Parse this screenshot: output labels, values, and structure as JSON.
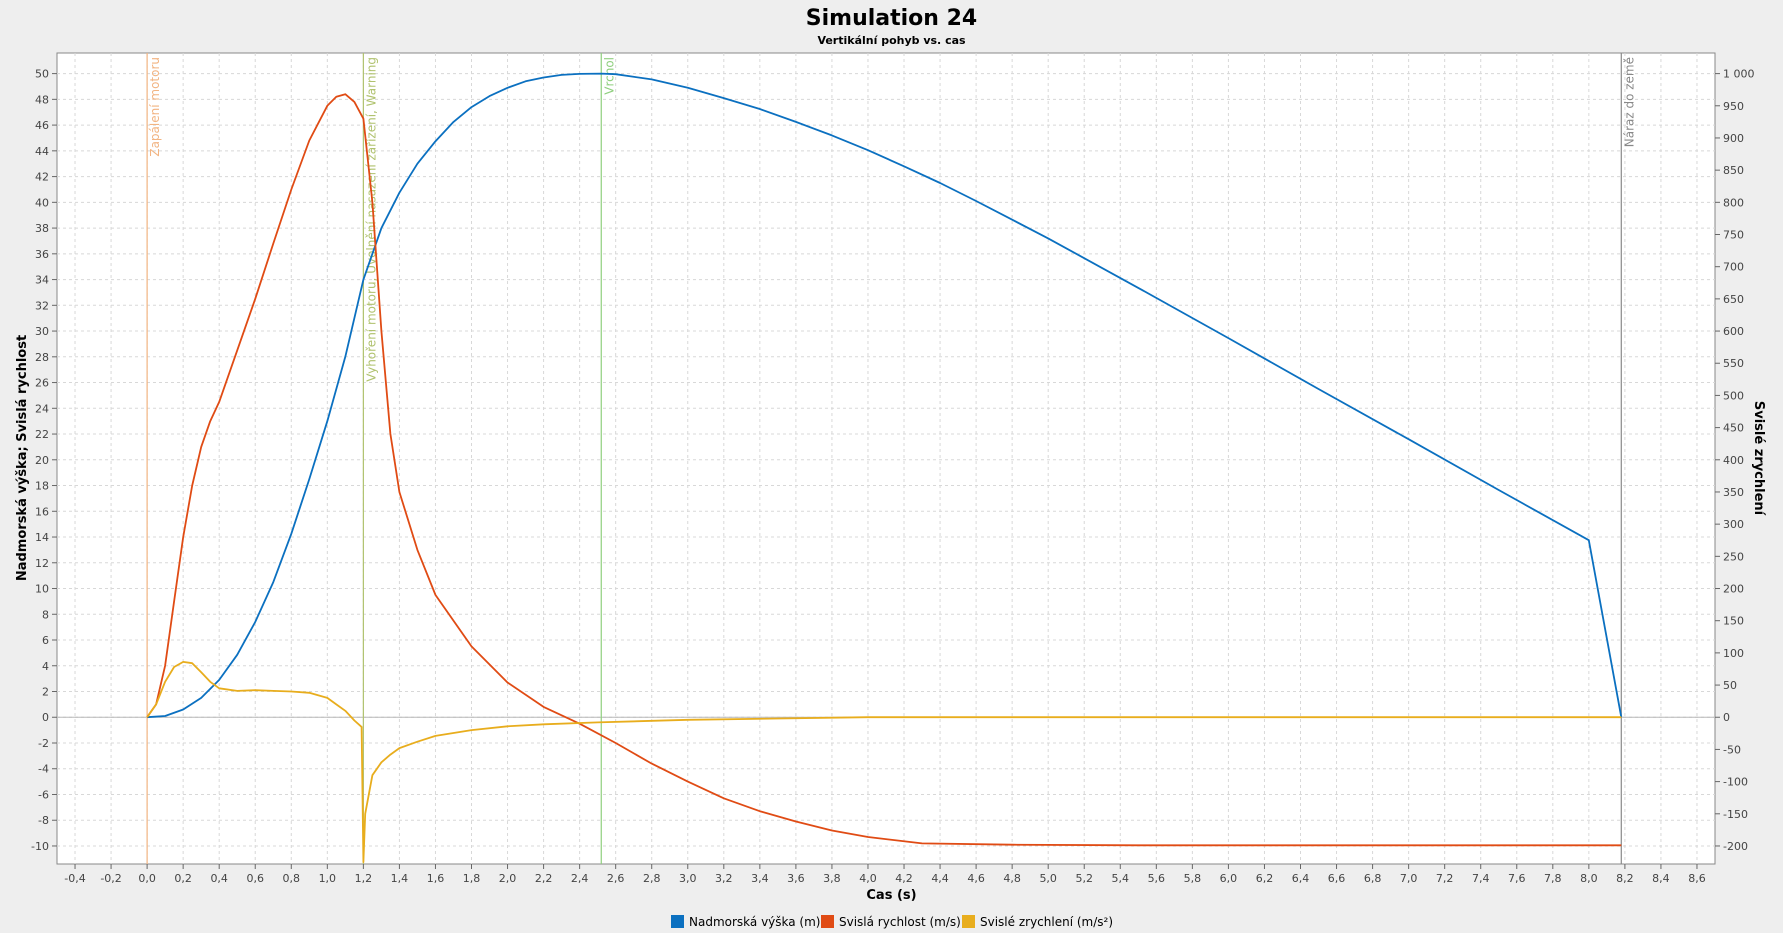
{
  "chart_data": {
    "type": "line",
    "title": "Simulation 24",
    "subtitle": "Vertikální pohyb vs. cas",
    "xlabel": "Cas (s)",
    "ylabel_left": "Nadmorská výška; Svislá rychlost",
    "ylabel_right": "Svislé zrychlení",
    "xlim": [
      -0.5,
      8.7
    ],
    "ylim_left": [
      -11.4,
      51.6
    ],
    "ylim_right": [
      -228,
      1032
    ],
    "x_ticks": [
      "-0,4",
      "-0,2",
      "0,0",
      "0,2",
      "0,4",
      "0,6",
      "0,8",
      "1,0",
      "1,2",
      "1,4",
      "1,6",
      "1,8",
      "2,0",
      "2,2",
      "2,4",
      "2,6",
      "2,8",
      "3,0",
      "3,2",
      "3,4",
      "3,6",
      "3,8",
      "4,0",
      "4,2",
      "4,4",
      "4,6",
      "4,8",
      "5,0",
      "5,2",
      "5,4",
      "5,6",
      "5,8",
      "6,0",
      "6,2",
      "6,4",
      "6,6",
      "6,8",
      "7,0",
      "7,2",
      "7,4",
      "7,6",
      "7,8",
      "8,0",
      "8,2",
      "8,4",
      "8,6"
    ],
    "y_left_ticks": [
      "-10",
      "-8",
      "-6",
      "-4",
      "-2",
      "0",
      "2",
      "4",
      "6",
      "8",
      "10",
      "12",
      "14",
      "16",
      "18",
      "20",
      "22",
      "24",
      "26",
      "28",
      "30",
      "32",
      "34",
      "36",
      "38",
      "40",
      "42",
      "44",
      "46",
      "48",
      "50"
    ],
    "y_right_ticks": [
      "-200",
      "-150",
      "-100",
      "-50",
      "0",
      "50",
      "100",
      "150",
      "200",
      "250",
      "300",
      "350",
      "400",
      "450",
      "500",
      "550",
      "600",
      "650",
      "700",
      "750",
      "800",
      "850",
      "900",
      "950",
      "1 000"
    ],
    "grid": true,
    "legend_position": "bottom-center",
    "series": [
      {
        "name": "Nadmorská výška (m)",
        "axis": "right",
        "color": "#0b70c0",
        "x": [
          0,
          0.1,
          0.2,
          0.3,
          0.4,
          0.5,
          0.6,
          0.7,
          0.8,
          0.9,
          1.0,
          1.1,
          1.2,
          1.3,
          1.4,
          1.5,
          1.6,
          1.7,
          1.8,
          1.9,
          2.0,
          2.1,
          2.2,
          2.3,
          2.4,
          2.52,
          2.6,
          2.8,
          3.0,
          3.2,
          3.4,
          3.6,
          3.8,
          4.0,
          4.2,
          4.4,
          4.6,
          4.8,
          5.0,
          5.5,
          6.0,
          6.5,
          7.0,
          7.5,
          8.0,
          8.18
        ],
        "y": [
          0,
          2,
          12,
          30,
          58,
          97,
          148,
          210,
          285,
          370,
          460,
          560,
          680,
          760,
          815,
          860,
          895,
          925,
          948,
          965,
          978,
          988,
          994,
          998,
          999.5,
          1000,
          999,
          991,
          978,
          962,
          945,
          925,
          904,
          881,
          856,
          830,
          802,
          773,
          744,
          667,
          589,
          510,
          432,
          353,
          275,
          0
        ]
      },
      {
        "name": "Svislá rychlost (m/s)",
        "axis": "left",
        "color": "#e04b14",
        "x": [
          0,
          0.05,
          0.1,
          0.15,
          0.2,
          0.25,
          0.3,
          0.35,
          0.4,
          0.5,
          0.6,
          0.7,
          0.8,
          0.9,
          1.0,
          1.05,
          1.1,
          1.15,
          1.2,
          1.25,
          1.3,
          1.35,
          1.4,
          1.5,
          1.6,
          1.8,
          2.0,
          2.2,
          2.4,
          2.6,
          2.8,
          3.0,
          3.2,
          3.4,
          3.6,
          3.8,
          4.0,
          4.3,
          4.8,
          5.5,
          6.5,
          7.5,
          8.18
        ],
        "y": [
          0,
          1,
          4,
          9,
          14,
          18,
          21,
          23,
          24.5,
          28.5,
          32.5,
          36.8,
          41,
          44.8,
          47.5,
          48.2,
          48.4,
          47.8,
          46.5,
          40,
          30,
          22,
          17.5,
          13,
          9.5,
          5.5,
          2.7,
          0.8,
          -0.5,
          -2,
          -3.6,
          -5,
          -6.3,
          -7.3,
          -8.1,
          -8.8,
          -9.3,
          -9.8,
          -9.9,
          -9.95,
          -9.95,
          -9.95,
          -9.95
        ]
      },
      {
        "name": "Svislé zrychlení (m/s²)",
        "axis": "right",
        "color": "#e8ad1d",
        "x": [
          0,
          0.05,
          0.1,
          0.15,
          0.2,
          0.25,
          0.3,
          0.35,
          0.4,
          0.5,
          0.6,
          0.7,
          0.8,
          0.9,
          1.0,
          1.05,
          1.1,
          1.15,
          1.19,
          1.2,
          1.21,
          1.25,
          1.3,
          1.35,
          1.4,
          1.5,
          1.6,
          1.8,
          2.0,
          2.2,
          2.5,
          3.0,
          3.5,
          4.0,
          5.0,
          6.0,
          7.0,
          8.18
        ],
        "y": [
          0,
          20,
          55,
          78,
          86,
          84,
          70,
          55,
          45,
          41,
          42,
          41,
          40,
          38,
          30,
          20,
          10,
          -5,
          -15,
          -225,
          -150,
          -90,
          -70,
          -58,
          -48,
          -38,
          -29,
          -20,
          -14,
          -11,
          -8,
          -4,
          -2,
          0,
          0,
          0,
          0,
          0
        ]
      }
    ],
    "annotations": [
      {
        "label": "Zapálení motoru",
        "x": 0.0,
        "color": "#f2b482"
      },
      {
        "label": "Vyhoření motoru, Uvolnění nasazení zařízení, Warning",
        "x": 1.2,
        "color": "#b0c26e"
      },
      {
        "label": "Vrchol",
        "x": 2.52,
        "color": "#8fcf7e"
      },
      {
        "label": "Náraz do země",
        "x": 8.18,
        "color": "#888888"
      }
    ]
  }
}
